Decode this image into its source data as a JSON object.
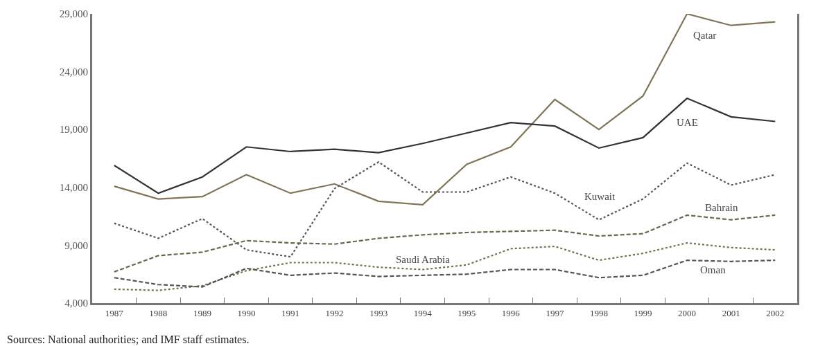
{
  "chart_data": {
    "type": "line",
    "categories": [
      "1987",
      "1988",
      "1989",
      "1990",
      "1991",
      "1992",
      "1993",
      "1994",
      "1995",
      "1996",
      "1997",
      "1998",
      "1999",
      "2000",
      "2001",
      "2002"
    ],
    "ylim": [
      4000,
      29000
    ],
    "yticks": [
      {
        "value": 4000,
        "label": "4,000"
      },
      {
        "value": 9000,
        "label": "9,000"
      },
      {
        "value": 14000,
        "label": "14,000"
      },
      {
        "value": 19000,
        "label": "19,000"
      },
      {
        "value": 24000,
        "label": "24,000"
      },
      {
        "value": 29000,
        "label": "29,000"
      }
    ],
    "legend": false,
    "series": [
      {
        "name": "Qatar",
        "color": "#7f7558",
        "line_style": "solid",
        "values": [
          14100,
          13000,
          13200,
          15100,
          13500,
          14300,
          12800,
          12500,
          16000,
          17500,
          21600,
          19000,
          21900,
          29000,
          28000,
          28300
        ]
      },
      {
        "name": "UAE",
        "color": "#333333",
        "line_style": "solid",
        "values": [
          15900,
          13500,
          14900,
          17500,
          17100,
          17300,
          17000,
          17800,
          18700,
          19600,
          19300,
          17400,
          18300,
          21700,
          20100,
          19700
        ]
      },
      {
        "name": "Kuwait",
        "color": "#555555",
        "line_style": "dotted",
        "values": [
          10900,
          9600,
          11300,
          8600,
          8000,
          13900,
          16200,
          13600,
          13600,
          14900,
          13500,
          11200,
          13000,
          16100,
          14200,
          15100
        ]
      },
      {
        "name": "Bahrain",
        "color": "#6b6650",
        "line_style": "dashed",
        "values": [
          6700,
          8100,
          8400,
          9400,
          9200,
          9100,
          9600,
          9900,
          10100,
          10200,
          10300,
          9800,
          10000,
          11600,
          11200,
          11600
        ]
      },
      {
        "name": "Saudi Arabia",
        "color": "#77704f",
        "line_style": "dotted",
        "values": [
          5200,
          5100,
          5500,
          6800,
          7500,
          7500,
          7100,
          6900,
          7300,
          8700,
          8900,
          7700,
          8300,
          9200,
          8800,
          8600
        ]
      },
      {
        "name": "Oman",
        "color": "#555555",
        "line_style": "dashed",
        "values": [
          6200,
          5600,
          5400,
          7000,
          6400,
          6600,
          6300,
          6400,
          6500,
          6900,
          6900,
          6200,
          6400,
          7700,
          7600,
          7700
        ]
      }
    ],
    "annotations": [
      "Sources: National authorities; and IMF staff estimates."
    ]
  }
}
